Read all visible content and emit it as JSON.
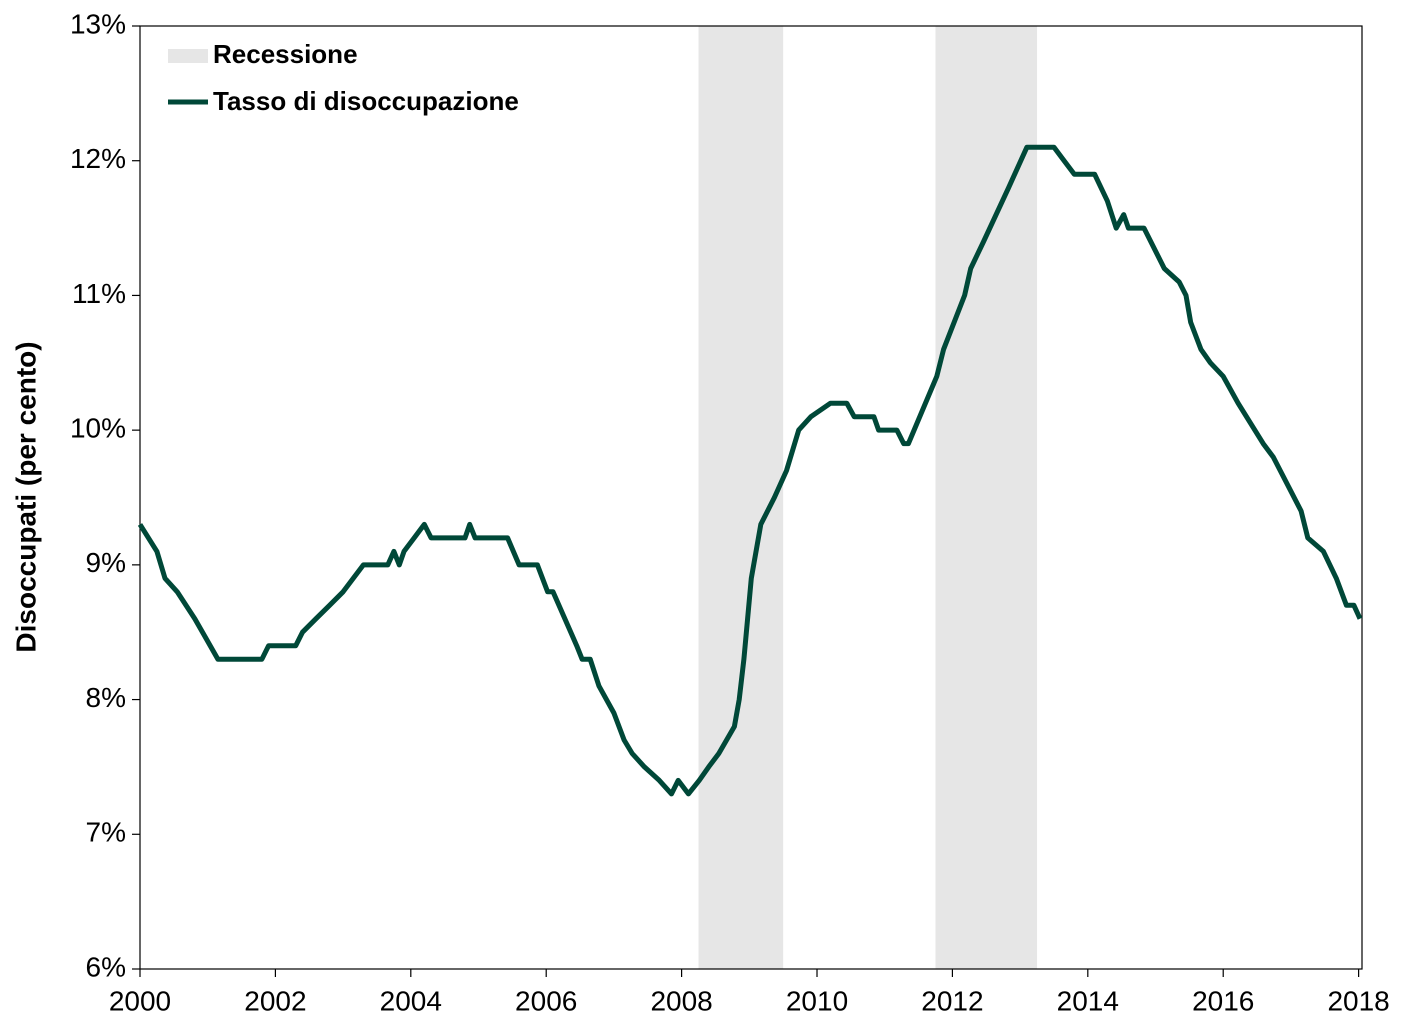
{
  "chart_data": {
    "type": "line",
    "y_label": "Disoccupati  (per cento)",
    "xlim": [
      2000,
      2018.05
    ],
    "xticks": [
      2000,
      2002,
      2004,
      2006,
      2008,
      2010,
      2012,
      2014,
      2016,
      2018
    ],
    "ylim": [
      6,
      13
    ],
    "yticks": [
      {
        "value": 6,
        "label": "6%"
      },
      {
        "value": 7,
        "label": "7%"
      },
      {
        "value": 8,
        "label": "8%"
      },
      {
        "value": 9,
        "label": "9%"
      },
      {
        "value": 10,
        "label": "10%"
      },
      {
        "value": 11,
        "label": "11%"
      },
      {
        "value": 12,
        "label": "12%"
      },
      {
        "value": 13,
        "label": "13%"
      }
    ],
    "recessions": {
      "name": "Recessione",
      "color": "#e6e6e6",
      "ranges": [
        [
          2008.25,
          2009.5
        ],
        [
          2011.75,
          2013.25
        ]
      ]
    },
    "legend": "upper left",
    "x": [
      2000.0,
      2000.25,
      2000.37,
      2000.55,
      2000.81,
      2001.15,
      2001.8,
      2001.9,
      2002.3,
      2002.4,
      2002.6,
      2002.8,
      2003.0,
      2003.15,
      2003.3,
      2003.66,
      2003.75,
      2003.83,
      2003.9,
      2004.05,
      2004.2,
      2004.3,
      2004.8,
      2004.87,
      2004.95,
      2005.43,
      2005.6,
      2005.87,
      2006.02,
      2006.1,
      2006.45,
      2006.53,
      2006.65,
      2006.78,
      2007.0,
      2007.15,
      2007.27,
      2007.45,
      2007.67,
      2007.85,
      2007.95,
      2008.1,
      2008.26,
      2008.4,
      2008.55,
      2008.78,
      2008.85,
      2008.92,
      2009.03,
      2009.17,
      2009.37,
      2009.55,
      2009.73,
      2009.91,
      2010.2,
      2010.44,
      2010.55,
      2010.84,
      2010.91,
      2011.18,
      2011.28,
      2011.35,
      2011.77,
      2011.87,
      2012.18,
      2012.27,
      2012.46,
      2012.83,
      2013.1,
      2013.5,
      2013.65,
      2013.8,
      2014.1,
      2014.29,
      2014.42,
      2014.53,
      2014.6,
      2014.83,
      2015.13,
      2015.35,
      2015.45,
      2015.52,
      2015.67,
      2015.81,
      2016.0,
      2016.22,
      2016.59,
      2016.74,
      2017.15,
      2017.25,
      2017.48,
      2017.67,
      2017.82,
      2017.93,
      2018.02
    ],
    "series": [
      {
        "name": "Tasso di disoccupazione",
        "color": "#004838",
        "values": [
          9.3,
          9.1,
          8.9,
          8.8,
          8.6,
          8.3,
          8.3,
          8.4,
          8.4,
          8.5,
          8.6,
          8.7,
          8.8,
          8.9,
          9.0,
          9.0,
          9.1,
          9.0,
          9.1,
          9.2,
          9.3,
          9.2,
          9.2,
          9.3,
          9.2,
          9.2,
          9.0,
          9.0,
          8.8,
          8.8,
          8.4,
          8.3,
          8.3,
          8.1,
          7.9,
          7.7,
          7.6,
          7.5,
          7.4,
          7.3,
          7.4,
          7.3,
          7.4,
          7.5,
          7.6,
          7.8,
          8.0,
          8.3,
          8.9,
          9.3,
          9.5,
          9.7,
          10.0,
          10.1,
          10.2,
          10.2,
          10.1,
          10.1,
          10.0,
          10.0,
          9.9,
          9.9,
          10.4,
          10.6,
          11.0,
          11.2,
          11.4,
          11.8,
          12.1,
          12.1,
          12.0,
          11.9,
          11.9,
          11.7,
          11.5,
          11.6,
          11.5,
          11.5,
          11.2,
          11.1,
          11.0,
          10.8,
          10.6,
          10.5,
          10.4,
          10.2,
          9.9,
          9.8,
          9.4,
          9.2,
          9.1,
          8.9,
          8.7,
          8.7,
          8.6
        ]
      }
    ]
  }
}
